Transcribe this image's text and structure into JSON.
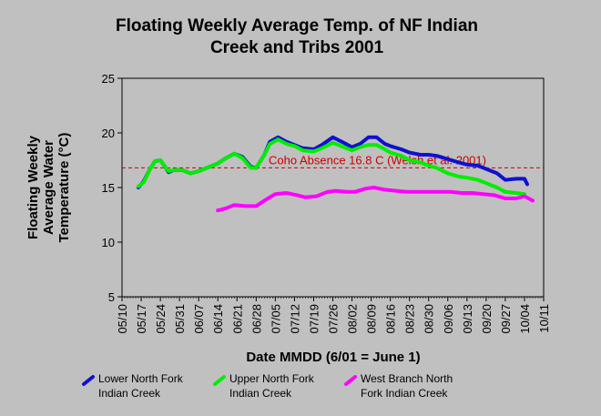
{
  "chart_data": {
    "type": "line",
    "title_lines": [
      "Floating Weekly Average Temp. of NF Indian",
      "Creek and Tribs 2001"
    ],
    "xlabel": "Date MMDD (6/01 = June 1)",
    "ylabel_lines": [
      "Floating Weekly",
      "Average Water",
      "Temperature (°C)"
    ],
    "ylim": [
      5,
      25
    ],
    "yticks": [
      5,
      10,
      15,
      20,
      25
    ],
    "xlim": [
      "2001-05-10",
      "2001-10-11"
    ],
    "xticks": [
      "05/10",
      "05/17",
      "05/24",
      "05/31",
      "06/07",
      "06/14",
      "06/21",
      "06/28",
      "07/05",
      "07/12",
      "07/19",
      "07/26",
      "08/02",
      "08/09",
      "08/16",
      "08/23",
      "08/30",
      "09/06",
      "09/13",
      "09/20",
      "09/27",
      "10/04",
      "10/11"
    ],
    "grid": false,
    "legend_position": "bottom",
    "reference_line": {
      "label": "Coho Absence 16.8 C  (Welsh et al. 2001)",
      "value": 16.8,
      "color": "#cc0000",
      "style": "dashed"
    },
    "series": [
      {
        "name": "Lower North Fork Indian Creek",
        "color": "#1010d0",
        "points": [
          [
            "2001-05-16",
            15.0
          ],
          [
            "2001-05-18",
            15.6
          ],
          [
            "2001-05-20",
            16.6
          ],
          [
            "2001-05-22",
            17.4
          ],
          [
            "2001-05-24",
            17.5
          ],
          [
            "2001-05-26",
            16.8
          ],
          [
            "2001-05-27",
            16.4
          ],
          [
            "2001-05-29",
            16.6
          ],
          [
            "2001-06-01",
            16.6
          ],
          [
            "2001-06-04",
            16.3
          ],
          [
            "2001-06-07",
            16.5
          ],
          [
            "2001-06-10",
            16.8
          ],
          [
            "2001-06-14",
            17.2
          ],
          [
            "2001-06-17",
            17.7
          ],
          [
            "2001-06-20",
            18.1
          ],
          [
            "2001-06-23",
            17.8
          ],
          [
            "2001-06-26",
            16.9
          ],
          [
            "2001-06-28",
            16.8
          ],
          [
            "2001-07-01",
            18.0
          ],
          [
            "2001-07-03",
            19.2
          ],
          [
            "2001-07-06",
            19.6
          ],
          [
            "2001-07-09",
            19.2
          ],
          [
            "2001-07-12",
            18.9
          ],
          [
            "2001-07-15",
            18.6
          ],
          [
            "2001-07-19",
            18.5
          ],
          [
            "2001-07-22",
            18.9
          ],
          [
            "2001-07-26",
            19.6
          ],
          [
            "2001-07-30",
            19.1
          ],
          [
            "2001-08-02",
            18.7
          ],
          [
            "2001-08-05",
            19.0
          ],
          [
            "2001-08-08",
            19.6
          ],
          [
            "2001-08-11",
            19.6
          ],
          [
            "2001-08-14",
            19.0
          ],
          [
            "2001-08-16",
            18.8
          ],
          [
            "2001-08-20",
            18.5
          ],
          [
            "2001-08-23",
            18.2
          ],
          [
            "2001-08-27",
            18.0
          ],
          [
            "2001-08-30",
            18.0
          ],
          [
            "2001-09-02",
            17.9
          ],
          [
            "2001-09-06",
            17.6
          ],
          [
            "2001-09-10",
            17.3
          ],
          [
            "2001-09-13",
            17.1
          ],
          [
            "2001-09-17",
            17.0
          ],
          [
            "2001-09-20",
            16.7
          ],
          [
            "2001-09-24",
            16.3
          ],
          [
            "2001-09-27",
            15.7
          ],
          [
            "2001-10-01",
            15.8
          ],
          [
            "2001-10-04",
            15.8
          ],
          [
            "2001-10-05",
            15.3
          ]
        ]
      },
      {
        "name": "Upper North Fork Indian Creek",
        "color": "#00ee00",
        "points": [
          [
            "2001-05-16",
            15.1
          ],
          [
            "2001-05-18",
            15.5
          ],
          [
            "2001-05-20",
            16.6
          ],
          [
            "2001-05-22",
            17.4
          ],
          [
            "2001-05-24",
            17.5
          ],
          [
            "2001-05-26",
            16.8
          ],
          [
            "2001-05-27",
            16.5
          ],
          [
            "2001-05-29",
            16.6
          ],
          [
            "2001-06-01",
            16.6
          ],
          [
            "2001-06-04",
            16.3
          ],
          [
            "2001-06-07",
            16.5
          ],
          [
            "2001-06-10",
            16.8
          ],
          [
            "2001-06-14",
            17.2
          ],
          [
            "2001-06-17",
            17.7
          ],
          [
            "2001-06-20",
            18.1
          ],
          [
            "2001-06-23",
            17.7
          ],
          [
            "2001-06-26",
            16.8
          ],
          [
            "2001-06-28",
            16.8
          ],
          [
            "2001-07-01",
            18.0
          ],
          [
            "2001-07-03",
            19.0
          ],
          [
            "2001-07-06",
            19.4
          ],
          [
            "2001-07-09",
            19.0
          ],
          [
            "2001-07-12",
            18.8
          ],
          [
            "2001-07-15",
            18.4
          ],
          [
            "2001-07-19",
            18.3
          ],
          [
            "2001-07-22",
            18.6
          ],
          [
            "2001-07-26",
            19.1
          ],
          [
            "2001-07-30",
            18.7
          ],
          [
            "2001-08-02",
            18.4
          ],
          [
            "2001-08-05",
            18.7
          ],
          [
            "2001-08-08",
            18.9
          ],
          [
            "2001-08-11",
            18.9
          ],
          [
            "2001-08-14",
            18.5
          ],
          [
            "2001-08-16",
            18.2
          ],
          [
            "2001-08-20",
            17.9
          ],
          [
            "2001-08-23",
            17.5
          ],
          [
            "2001-08-27",
            17.3
          ],
          [
            "2001-08-30",
            17.0
          ],
          [
            "2001-09-02",
            16.8
          ],
          [
            "2001-09-06",
            16.3
          ],
          [
            "2001-09-10",
            16.0
          ],
          [
            "2001-09-13",
            15.9
          ],
          [
            "2001-09-17",
            15.7
          ],
          [
            "2001-09-20",
            15.4
          ],
          [
            "2001-09-24",
            15.0
          ],
          [
            "2001-09-27",
            14.6
          ],
          [
            "2001-10-01",
            14.5
          ],
          [
            "2001-10-04",
            14.4
          ]
        ]
      },
      {
        "name": "West Branch North Fork Indian Creek",
        "color": "#ff00ff",
        "points": [
          [
            "2001-06-14",
            12.9
          ],
          [
            "2001-06-17",
            13.1
          ],
          [
            "2001-06-20",
            13.4
          ],
          [
            "2001-06-24",
            13.3
          ],
          [
            "2001-06-28",
            13.3
          ],
          [
            "2001-07-01",
            13.8
          ],
          [
            "2001-07-05",
            14.4
          ],
          [
            "2001-07-09",
            14.5
          ],
          [
            "2001-07-13",
            14.3
          ],
          [
            "2001-07-16",
            14.1
          ],
          [
            "2001-07-20",
            14.2
          ],
          [
            "2001-07-24",
            14.6
          ],
          [
            "2001-07-27",
            14.7
          ],
          [
            "2001-07-31",
            14.6
          ],
          [
            "2001-08-03",
            14.6
          ],
          [
            "2001-08-07",
            14.9
          ],
          [
            "2001-08-10",
            15.0
          ],
          [
            "2001-08-14",
            14.8
          ],
          [
            "2001-08-18",
            14.7
          ],
          [
            "2001-08-22",
            14.6
          ],
          [
            "2001-08-26",
            14.6
          ],
          [
            "2001-08-30",
            14.6
          ],
          [
            "2001-09-03",
            14.6
          ],
          [
            "2001-09-07",
            14.6
          ],
          [
            "2001-09-11",
            14.5
          ],
          [
            "2001-09-15",
            14.5
          ],
          [
            "2001-09-19",
            14.4
          ],
          [
            "2001-09-23",
            14.3
          ],
          [
            "2001-09-27",
            14.0
          ],
          [
            "2001-10-01",
            14.0
          ],
          [
            "2001-10-04",
            14.2
          ],
          [
            "2001-10-07",
            13.8
          ]
        ]
      }
    ],
    "legend": [
      {
        "lines": [
          "Lower North Fork",
          "Indian Creek"
        ],
        "color": "#1010d0"
      },
      {
        "lines": [
          "Upper North Fork",
          "Indian Creek"
        ],
        "color": "#00ee00"
      },
      {
        "lines": [
          "West Branch North",
          "Fork Indian Creek"
        ],
        "color": "#ff00ff"
      }
    ]
  }
}
